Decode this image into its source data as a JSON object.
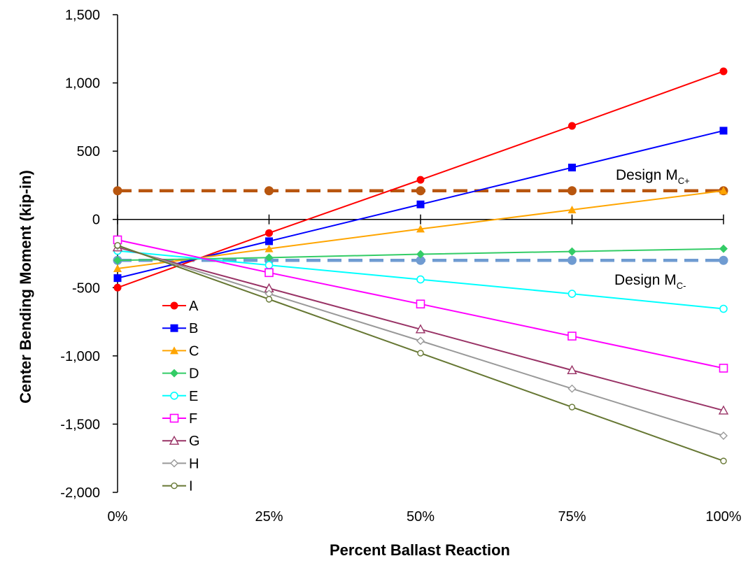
{
  "chart_data": {
    "type": "line",
    "title": "",
    "xlabel": "Percent Ballast Reaction",
    "ylabel": "Center Bending Moment (kip-in)",
    "x": [
      0,
      25,
      50,
      75,
      100
    ],
    "x_tick_labels": [
      "0%",
      "25%",
      "50%",
      "75%",
      "100%"
    ],
    "ylim": [
      -2000,
      1500
    ],
    "y_ticks": [
      -2000,
      -1500,
      -1000,
      -500,
      0,
      500,
      1000,
      1500
    ],
    "y_tick_labels": [
      "-2,000",
      "-1,500",
      "-1,000",
      "-500",
      "0",
      "500",
      "1,000",
      "1,500"
    ],
    "grid": false,
    "legend_position": "lower-left",
    "series": [
      {
        "name": "A",
        "color": "#ff0000",
        "marker": "circle-filled",
        "values": [
          -500,
          -100,
          290,
          685,
          1085
        ]
      },
      {
        "name": "B",
        "color": "#0000ff",
        "marker": "square-filled",
        "values": [
          -430,
          -160,
          110,
          380,
          650
        ]
      },
      {
        "name": "C",
        "color": "#ffa500",
        "marker": "triangle-filled",
        "values": [
          -360,
          -215,
          -70,
          70,
          210
        ]
      },
      {
        "name": "D",
        "color": "#33cc66",
        "marker": "diamond-filled",
        "values": [
          -300,
          -280,
          -255,
          -235,
          -215
        ]
      },
      {
        "name": "E",
        "color": "#00ffff",
        "marker": "circle-open",
        "values": [
          -230,
          -335,
          -440,
          -545,
          -655
        ]
      },
      {
        "name": "F",
        "color": "#ff00ff",
        "marker": "square-open",
        "values": [
          -150,
          -390,
          -620,
          -855,
          -1090
        ]
      },
      {
        "name": "G",
        "color": "#993366",
        "marker": "triangle-open",
        "values": [
          -205,
          -505,
          -805,
          -1105,
          -1400
        ]
      },
      {
        "name": "H",
        "color": "#999999",
        "marker": "diamond-open",
        "values": [
          -195,
          -545,
          -890,
          -1240,
          -1585
        ]
      },
      {
        "name": "I",
        "color": "#667733",
        "marker": "circle-open-small",
        "values": [
          -190,
          -585,
          -980,
          -1375,
          -1770
        ]
      }
    ],
    "reference_lines": [
      {
        "label_main": "Design M",
        "label_sub": "C+",
        "value": 210,
        "color": "#b8560f"
      },
      {
        "label_main": "Design M",
        "label_sub": "C-",
        "value": -300,
        "color": "#6f9bd1"
      }
    ]
  }
}
